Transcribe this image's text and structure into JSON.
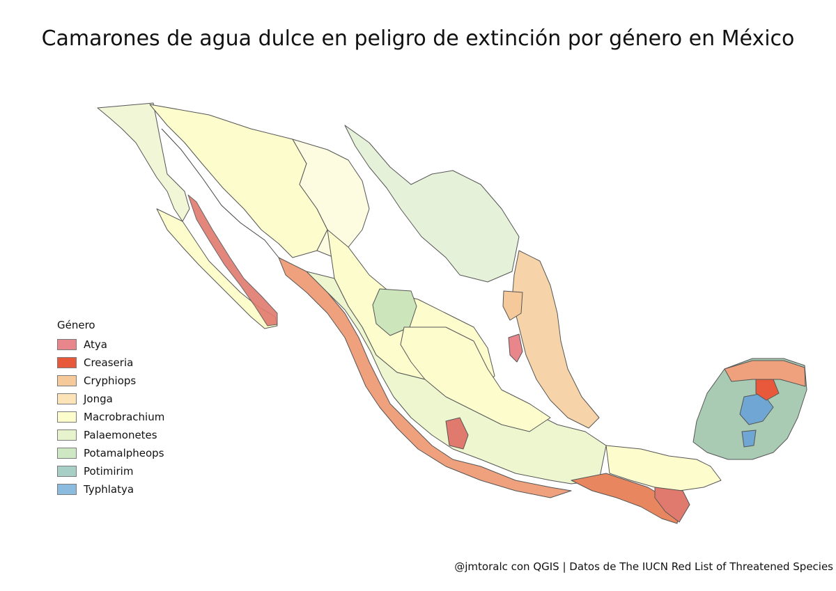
{
  "title": "Camarones de agua dulce en peligro de extinción por género en México",
  "legend": {
    "title": "Género",
    "items": [
      {
        "label": "Atya",
        "color": "#e8868c"
      },
      {
        "label": "Creaseria",
        "color": "#e8583a"
      },
      {
        "label": "Cryphiops",
        "color": "#f6c99a"
      },
      {
        "label": "Jonga",
        "color": "#fde3b8"
      },
      {
        "label": "Macrobrachium",
        "color": "#fdfccd"
      },
      {
        "label": "Palaemonetes",
        "color": "#e6f3cd"
      },
      {
        "label": "Potamalpheops",
        "color": "#cde8c2"
      },
      {
        "label": "Potimirim",
        "color": "#a8cfc6"
      },
      {
        "label": "Typhlatya",
        "color": "#8cbbe0"
      }
    ]
  },
  "credit": "@jmtoralc con QGIS | Datos de The IUCN Red List of Threatened Species"
}
